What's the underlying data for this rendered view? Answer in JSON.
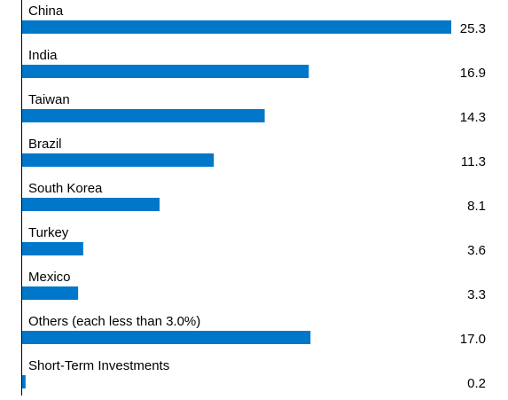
{
  "chart_data": {
    "type": "bar",
    "orientation": "horizontal",
    "categories": [
      "China",
      "India",
      "Taiwan",
      "Brazil",
      "South Korea",
      "Turkey",
      "Mexico",
      "Others (each less than 3.0%)",
      "Short-Term Investments"
    ],
    "values": [
      25.3,
      16.9,
      14.3,
      11.3,
      8.1,
      3.6,
      3.3,
      17.0,
      0.2
    ],
    "value_labels": [
      "25.3",
      "16.9",
      "14.3",
      "11.3",
      "8.1",
      "3.6",
      "3.3",
      "17.0",
      "0.2"
    ],
    "title": "",
    "xlabel": "",
    "ylabel": "",
    "xlim": [
      0,
      25.3
    ],
    "grid": false,
    "legend": "none",
    "bar_color": "#0077c8",
    "axis_color": "#000000"
  }
}
